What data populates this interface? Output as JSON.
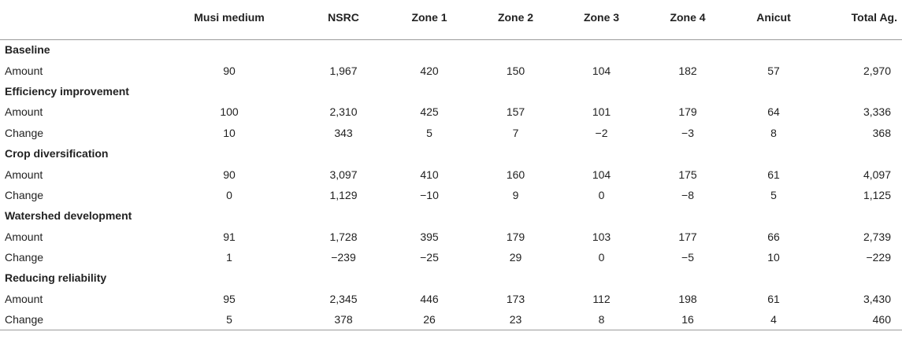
{
  "table": {
    "headers": [
      "",
      "Musi medium",
      "NSRC",
      "Zone 1",
      "Zone 2",
      "Zone 3",
      "Zone 4",
      "Anicut",
      "Total Ag."
    ],
    "sections": [
      {
        "title": "Baseline",
        "rows": [
          {
            "label": "Amount",
            "values": [
              "90",
              "1,967",
              "420",
              "150",
              "104",
              "182",
              "57",
              "2,970"
            ]
          }
        ]
      },
      {
        "title": "Efficiency improvement",
        "rows": [
          {
            "label": "Amount",
            "values": [
              "100",
              "2,310",
              "425",
              "157",
              "101",
              "179",
              "64",
              "3,336"
            ]
          },
          {
            "label": "Change",
            "values": [
              "10",
              "343",
              "5",
              "7",
              "−2",
              "−3",
              "8",
              "368"
            ]
          }
        ]
      },
      {
        "title": "Crop diversification",
        "rows": [
          {
            "label": "Amount",
            "values": [
              "90",
              "3,097",
              "410",
              "160",
              "104",
              "175",
              "61",
              "4,097"
            ]
          },
          {
            "label": "Change",
            "values": [
              "0",
              "1,129",
              "−10",
              "9",
              "0",
              "−8",
              "5",
              "1,125"
            ]
          }
        ]
      },
      {
        "title": "Watershed development",
        "rows": [
          {
            "label": "Amount",
            "values": [
              "91",
              "1,728",
              "395",
              "179",
              "103",
              "177",
              "66",
              "2,739"
            ]
          },
          {
            "label": "Change",
            "values": [
              "1",
              "−239",
              "−25",
              "29",
              "0",
              "−5",
              "10",
              "−229"
            ]
          }
        ]
      },
      {
        "title": "Reducing reliability",
        "rows": [
          {
            "label": "Amount",
            "values": [
              "95",
              "2,345",
              "446",
              "173",
              "112",
              "198",
              "61",
              "3,430"
            ]
          },
          {
            "label": "Change",
            "values": [
              "5",
              "378",
              "26",
              "23",
              "8",
              "16",
              "4",
              "460"
            ]
          }
        ]
      }
    ]
  }
}
